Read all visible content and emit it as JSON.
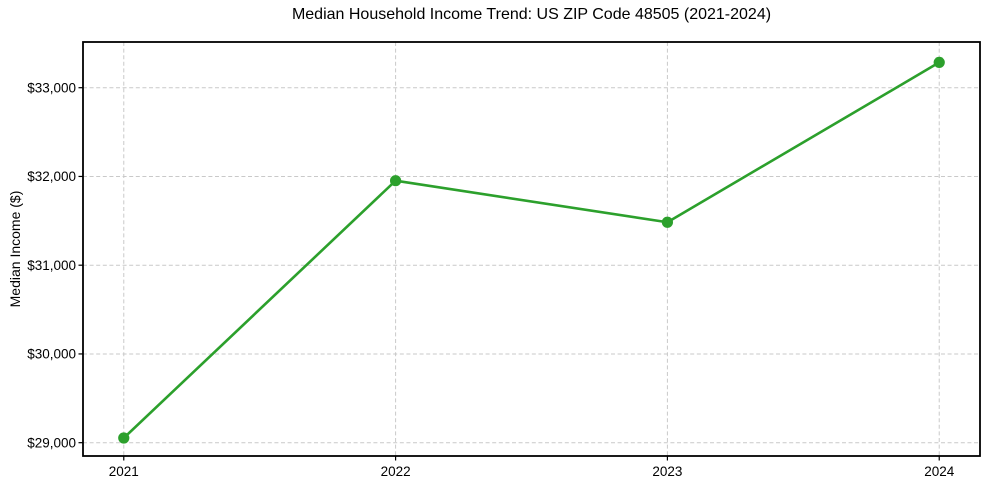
{
  "chart_data": {
    "type": "line",
    "title": "Median Household Income Trend: US ZIP Code 48505 (2021-2024)",
    "xlabel": "",
    "ylabel": "Median Income ($)",
    "x": [
      "2021",
      "2022",
      "2023",
      "2024"
    ],
    "values": [
      29053,
      31952,
      31484,
      33285
    ],
    "yticks": [
      29000,
      30000,
      31000,
      32000,
      33000
    ],
    "ytick_labels": [
      "$29,000",
      "$30,000",
      "$31,000",
      "$32,000",
      "$33,000"
    ],
    "xtick_labels": [
      "2021",
      "2022",
      "2023",
      "2024"
    ],
    "ylim": [
      28850,
      33515
    ],
    "xlim": [
      -0.15,
      3.15
    ],
    "grid": "both-dashed",
    "legend": "none",
    "marker_radius": 5.6,
    "colors": {
      "line": "#2ca02c",
      "marker": "#2ca02c",
      "grid": "#c9c9c9",
      "spine": "#000000",
      "text": "#000000",
      "background": "#ffffff"
    }
  }
}
